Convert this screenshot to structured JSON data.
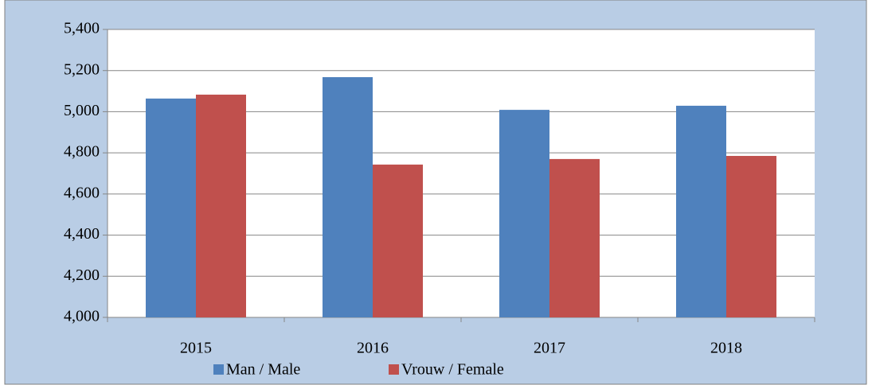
{
  "chart_data": {
    "type": "bar",
    "categories": [
      "2015",
      "2016",
      "2017",
      "2018"
    ],
    "series": [
      {
        "name": "Man / Male",
        "color": "#4f81bd",
        "values": [
          5064,
          5168,
          5009,
          5029
        ]
      },
      {
        "name": "Vrouw / Female",
        "color": "#c0504d",
        "values": [
          5083,
          4743,
          4770,
          4785
        ]
      }
    ],
    "ylim": [
      4000,
      5400
    ],
    "yticks": [
      {
        "value": 4000,
        "label": "4,000"
      },
      {
        "value": 4200,
        "label": "4,200"
      },
      {
        "value": 4400,
        "label": "4,400"
      },
      {
        "value": 4600,
        "label": "4,600"
      },
      {
        "value": 4800,
        "label": "4,800"
      },
      {
        "value": 5000,
        "label": "5,000"
      },
      {
        "value": 5200,
        "label": "5,200"
      },
      {
        "value": 5400,
        "label": "5,400"
      }
    ],
    "grid": true,
    "legend": "bottom"
  }
}
